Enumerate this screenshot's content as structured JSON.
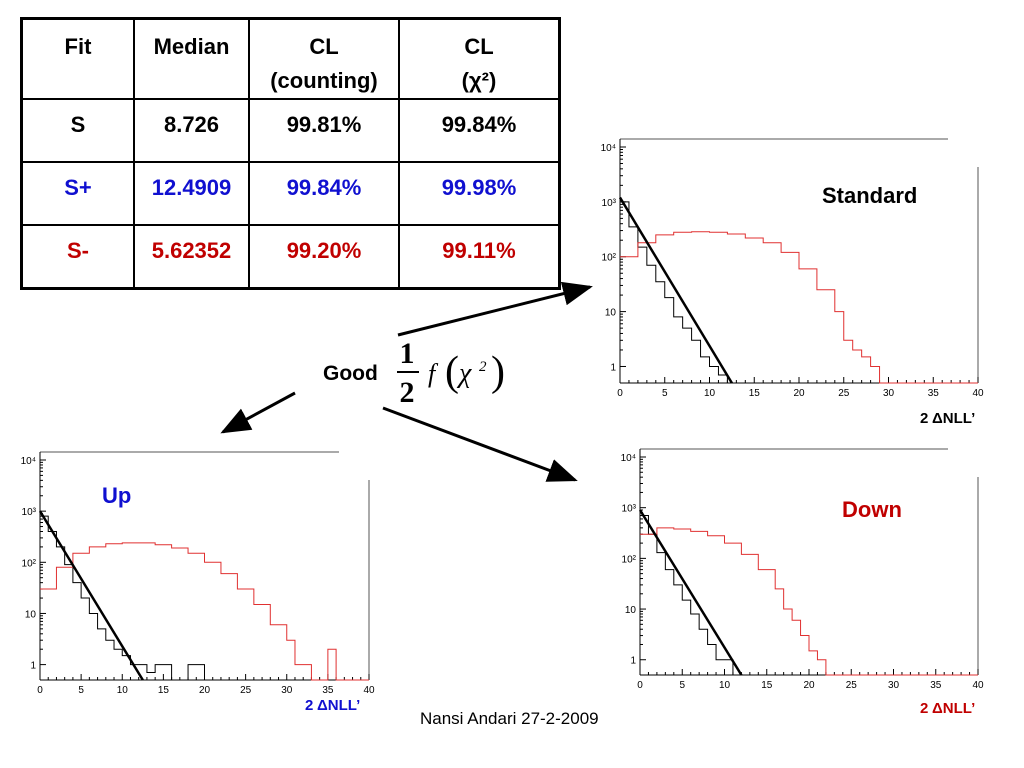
{
  "table": {
    "headers": [
      {
        "line1": "Fit",
        "line2": ""
      },
      {
        "line1": "Median",
        "line2": ""
      },
      {
        "line1": "CL",
        "line2": "(counting)"
      },
      {
        "line1": "CL",
        "line2": "(χ²)"
      }
    ],
    "rows": [
      {
        "fit": "S",
        "median": "8.726",
        "cl_counting": "99.81%",
        "cl_chi2": "99.84%",
        "color": "#000000"
      },
      {
        "fit": "S+",
        "median": "12.4909",
        "cl_counting": "99.84%",
        "cl_chi2": "99.98%",
        "color": "#1010d0"
      },
      {
        "fit": "S-",
        "median": "5.62352",
        "cl_counting": "99.20%",
        "cl_chi2": "99.11%",
        "color": "#c00000"
      }
    ]
  },
  "annotation": {
    "good": "Good",
    "fraction_num": "1",
    "fraction_den": "2",
    "func": "f",
    "chi": "χ",
    "exp": "2"
  },
  "footer": "Nansi Andari 27-2-2009",
  "colors": {
    "red_hist": "#e03030",
    "black_hist": "#000000",
    "label_blue": "#1010d0",
    "label_red": "#c00000"
  },
  "chart_data": [
    {
      "type": "line",
      "label": "Standard",
      "label_color": "#000000",
      "xlabel": "2 ΔNLL’",
      "xlabel_color": "#000000",
      "xlim": [
        0,
        40
      ],
      "ylim": [
        0.5,
        10000
      ],
      "yscale": "log",
      "xticks": [
        0,
        5,
        10,
        15,
        20,
        25,
        30,
        35,
        40
      ],
      "series": [
        {
          "color": "#000000",
          "style": "step",
          "x": [
            0,
            1,
            2,
            3,
            4,
            5,
            6,
            7,
            8,
            9,
            10,
            11,
            12,
            13,
            14,
            15,
            16
          ],
          "y": [
            1000,
            350,
            150,
            70,
            35,
            18,
            8,
            5,
            3,
            1.5,
            1,
            0.7,
            0.5,
            0.5,
            0.5,
            0.5,
            0.5
          ]
        },
        {
          "color": "#e03030",
          "style": "step",
          "x": [
            0,
            2,
            4,
            6,
            8,
            10,
            12,
            14,
            16,
            18,
            20,
            22,
            24,
            25,
            26,
            27,
            28,
            29,
            30,
            40
          ],
          "y": [
            100,
            180,
            250,
            280,
            285,
            280,
            260,
            220,
            180,
            120,
            60,
            25,
            10,
            3,
            2,
            1.5,
            1,
            0.5,
            0.5,
            0.5
          ]
        },
        {
          "color": "#000000",
          "style": "fit",
          "x": [
            0,
            12.5
          ],
          "y": [
            1200,
            0.5
          ]
        }
      ]
    },
    {
      "type": "line",
      "label": "Up",
      "label_color": "#1010d0",
      "xlabel": "2 ΔNLL’",
      "xlabel_color": "#1010d0",
      "xlim": [
        0,
        40
      ],
      "ylim": [
        0.5,
        10000
      ],
      "yscale": "log",
      "xticks": [
        0,
        5,
        10,
        15,
        20,
        25,
        30,
        35,
        40
      ],
      "series": [
        {
          "color": "#000000",
          "style": "step",
          "x": [
            0,
            1,
            2,
            3,
            4,
            5,
            6,
            7,
            8,
            9,
            10,
            11,
            12,
            13,
            14,
            16,
            18,
            20,
            21
          ],
          "y": [
            800,
            400,
            200,
            90,
            40,
            20,
            10,
            5,
            3,
            2,
            1.5,
            1,
            1,
            0.7,
            1,
            0.5,
            1,
            0.5,
            0.5
          ]
        },
        {
          "color": "#e03030",
          "style": "step",
          "x": [
            0,
            2,
            4,
            6,
            8,
            10,
            12,
            14,
            16,
            18,
            20,
            22,
            24,
            26,
            28,
            30,
            31,
            33,
            35,
            36,
            40
          ],
          "y": [
            30,
            80,
            150,
            200,
            230,
            240,
            240,
            220,
            190,
            150,
            100,
            60,
            30,
            15,
            6,
            3,
            1,
            0.5,
            2,
            0.5,
            0.5
          ]
        },
        {
          "color": "#000000",
          "style": "fit",
          "x": [
            0,
            12.5
          ],
          "y": [
            1000,
            0.5
          ]
        }
      ]
    },
    {
      "type": "line",
      "label": "Down",
      "label_color": "#c00000",
      "xlabel": "2 ΔNLL’",
      "xlabel_color": "#c00000",
      "xlim": [
        0,
        40
      ],
      "ylim": [
        0.5,
        10000
      ],
      "yscale": "log",
      "xticks": [
        0,
        5,
        10,
        15,
        20,
        25,
        30,
        35,
        40
      ],
      "series": [
        {
          "color": "#000000",
          "style": "step",
          "x": [
            0,
            1,
            2,
            3,
            4,
            5,
            6,
            7,
            8,
            9,
            10,
            11
          ],
          "y": [
            700,
            300,
            130,
            60,
            30,
            15,
            8,
            4,
            2,
            1,
            1,
            0.5
          ]
        },
        {
          "color": "#e03030",
          "style": "step",
          "x": [
            0,
            2,
            4,
            6,
            8,
            10,
            12,
            14,
            16,
            17,
            18,
            19,
            20,
            21,
            22,
            40
          ],
          "y": [
            300,
            400,
            380,
            340,
            280,
            200,
            120,
            60,
            25,
            10,
            6,
            3,
            1.5,
            1,
            0.5,
            0.5
          ]
        },
        {
          "color": "#000000",
          "style": "fit",
          "x": [
            0,
            12
          ],
          "y": [
            900,
            0.5
          ]
        }
      ]
    }
  ]
}
